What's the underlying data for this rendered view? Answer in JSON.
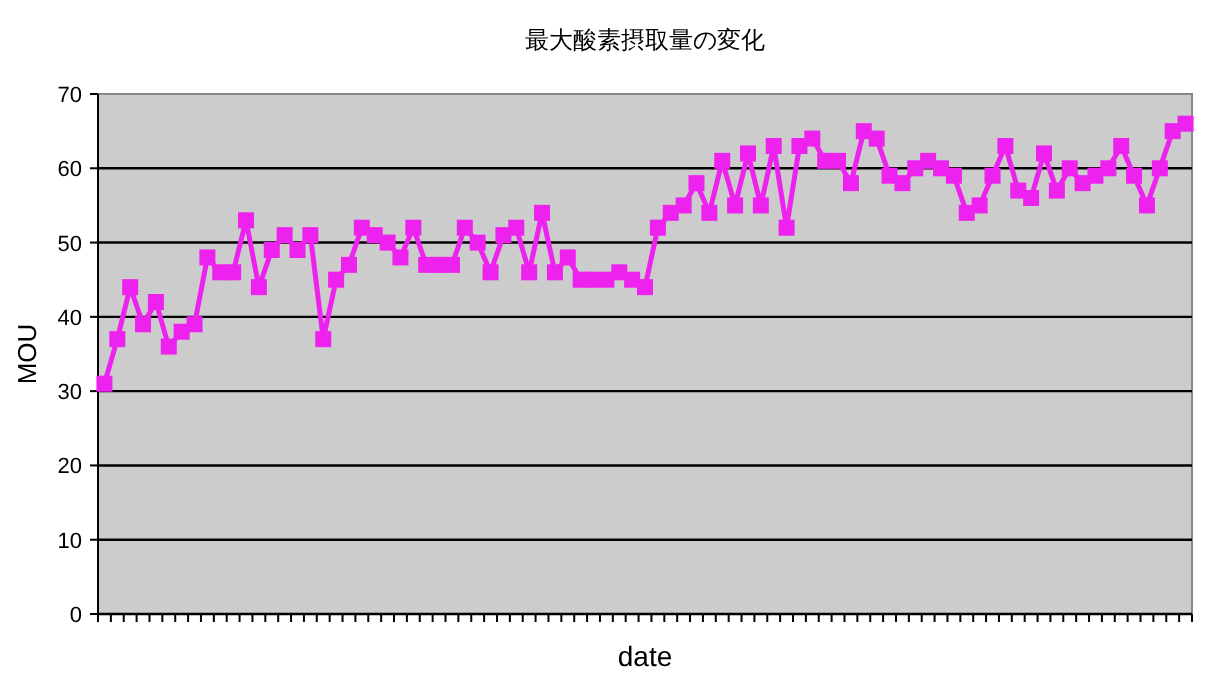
{
  "chart_data": {
    "type": "line",
    "title": "最大酸素摂取量の変化",
    "xlabel": "date",
    "ylabel": "MOU",
    "categories": [
      null,
      null,
      null,
      null,
      null,
      null,
      null,
      null,
      null,
      null,
      null,
      null,
      null,
      null,
      null,
      null,
      null,
      null,
      null,
      null,
      null,
      null,
      null,
      null,
      null,
      null,
      null,
      null,
      null,
      null,
      null,
      null,
      null,
      null,
      null,
      null,
      null,
      null,
      null,
      null,
      null,
      null,
      null,
      null,
      null,
      null,
      null,
      null,
      null,
      null,
      null,
      null,
      null,
      null,
      null,
      null,
      null,
      null,
      null,
      null,
      null,
      null,
      null,
      null,
      null,
      null,
      null,
      null,
      null,
      null,
      null,
      null,
      null,
      null,
      null,
      null,
      null,
      null,
      null,
      null,
      null,
      null,
      null,
      null,
      null
    ],
    "series": [
      {
        "color": "#ee22ee",
        "values": [
          31,
          37,
          44,
          39,
          42,
          36,
          38,
          39,
          48,
          46,
          46,
          53,
          44,
          49,
          51,
          49,
          51,
          37,
          45,
          47,
          52,
          51,
          50,
          48,
          52,
          47,
          47,
          47,
          52,
          50,
          46,
          51,
          52,
          46,
          54,
          46,
          48,
          45,
          45,
          45,
          46,
          45,
          44,
          52,
          54,
          55,
          58,
          54,
          61,
          55,
          62,
          55,
          63,
          52,
          63,
          64,
          61,
          61,
          58,
          65,
          64,
          59,
          58,
          60,
          61,
          60,
          59,
          54,
          55,
          59,
          63,
          57,
          56,
          62,
          57,
          60,
          58,
          59,
          60,
          63,
          59,
          55,
          60,
          65,
          66
        ]
      }
    ],
    "ylim": [
      0,
      70
    ],
    "yticks": [
      0,
      10,
      20,
      30,
      40,
      50,
      60,
      70
    ],
    "grid": "y",
    "marker": "square",
    "line_style": "solid"
  }
}
